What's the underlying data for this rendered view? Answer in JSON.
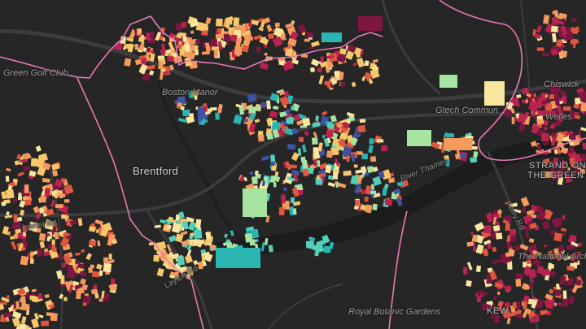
{
  "map": {
    "labels": {
      "golf_club": "Green Golf Club",
      "boston_manor": "Boston Manor",
      "brentford": "Brentford",
      "gtech": "Gtech Commun",
      "river_thames": "River Thames",
      "kew_botanic": "Royal Botanic Gardens",
      "national_archives": "The National Arch",
      "kew": "KEW",
      "strand_1": "STRAND ON",
      "strand_2": "THE GREEN",
      "lionel_rd": "Lionel Rd",
      "ferry_rd": "Ferry Rd",
      "layton_rd": "Layton Rd",
      "chiswick": "Chiswick",
      "wellesley": "Welles"
    },
    "colors": {
      "background": "#262626",
      "roads": "#3c3c3c",
      "river": "#1c1c1c",
      "boundary": "#e879b8",
      "building_palette": [
        "#fbe6a0",
        "#f7c76a",
        "#f59a5c",
        "#e0573f",
        "#b9234f",
        "#7d1640",
        "#2ab5b0",
        "#53d0b9",
        "#a7e3a1",
        "#3f53a3"
      ]
    }
  }
}
